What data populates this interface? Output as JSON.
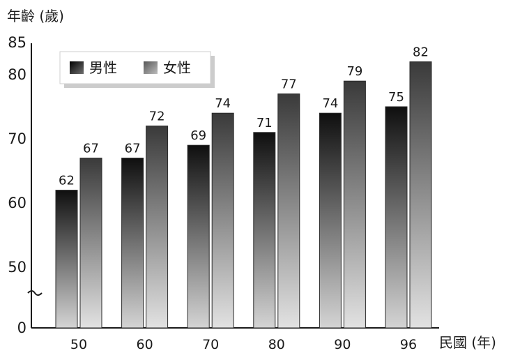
{
  "chart_data": {
    "type": "bar",
    "ylabel": "年齡 (歲)",
    "xlabel": "民國 (年)",
    "categories": [
      "50",
      "60",
      "70",
      "80",
      "90",
      "96"
    ],
    "series": [
      {
        "name": "男性",
        "values": [
          62,
          67,
          69,
          71,
          74,
          75
        ]
      },
      {
        "name": "女性",
        "values": [
          67,
          72,
          74,
          77,
          79,
          82
        ]
      }
    ],
    "yticks": [
      "0",
      "50",
      "60",
      "70",
      "80",
      "85"
    ],
    "ylim": [
      0,
      85
    ],
    "axis_break": true,
    "grid": false,
    "legend_position": "top-left",
    "colors": {
      "male_dark": "#0f0f0f",
      "male_light": "#d4d4d4",
      "female_dark": "#3a3a3a",
      "female_light": "#e2e2e2"
    }
  }
}
